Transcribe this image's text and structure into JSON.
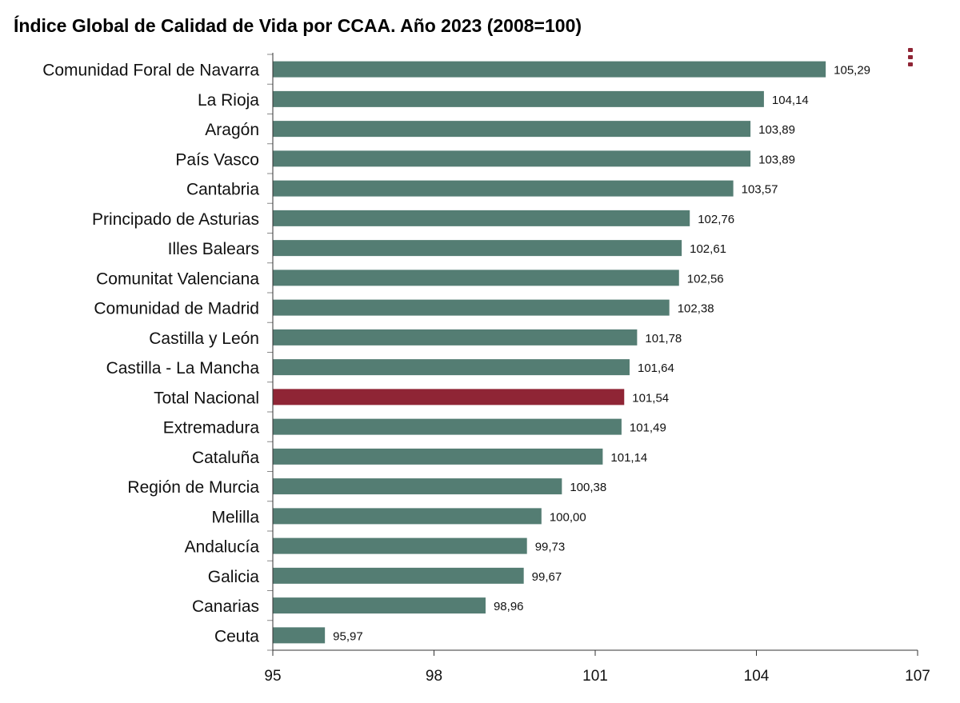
{
  "chart_data": {
    "type": "bar",
    "orientation": "horizontal",
    "title": "Índice Global de Calidad de Vida por CCAA. Año 2023 (2008=100)",
    "xlabel": "",
    "ylabel": "",
    "xlim": [
      95,
      107
    ],
    "x_ticks": [
      "95",
      "98",
      "101",
      "104",
      "107"
    ],
    "grid": false,
    "categories": [
      "Comunidad Foral de Navarra",
      "La Rioja",
      "Aragón",
      "País Vasco",
      "Cantabria",
      "Principado de Asturias",
      "Illes Balears",
      "Comunitat Valenciana",
      "Comunidad de Madrid",
      "Castilla y León",
      "Castilla - La Mancha",
      "Total Nacional",
      "Extremadura",
      "Cataluña",
      "Región de Murcia",
      "Melilla",
      "Andalucía",
      "Galicia",
      "Canarias",
      "Ceuta"
    ],
    "values": [
      105.29,
      104.14,
      103.89,
      103.89,
      103.57,
      102.76,
      102.61,
      102.56,
      102.38,
      101.78,
      101.64,
      101.54,
      101.49,
      101.14,
      100.38,
      100.0,
      99.73,
      99.67,
      98.96,
      95.97
    ],
    "value_labels": [
      "105,29",
      "104,14",
      "103,89",
      "103,89",
      "103,57",
      "102,76",
      "102,61",
      "102,56",
      "102,38",
      "101,78",
      "101,64",
      "101,54",
      "101,49",
      "101,14",
      "100,38",
      "100,00",
      "99,73",
      "99,67",
      "98,96",
      "95,97"
    ],
    "colors": {
      "bar": "#547d73",
      "highlight": "#8f2535"
    },
    "highlight_category": "Total Nacional"
  },
  "menu": {
    "icon": "vertical-dots-icon",
    "color": "#8f2535"
  }
}
